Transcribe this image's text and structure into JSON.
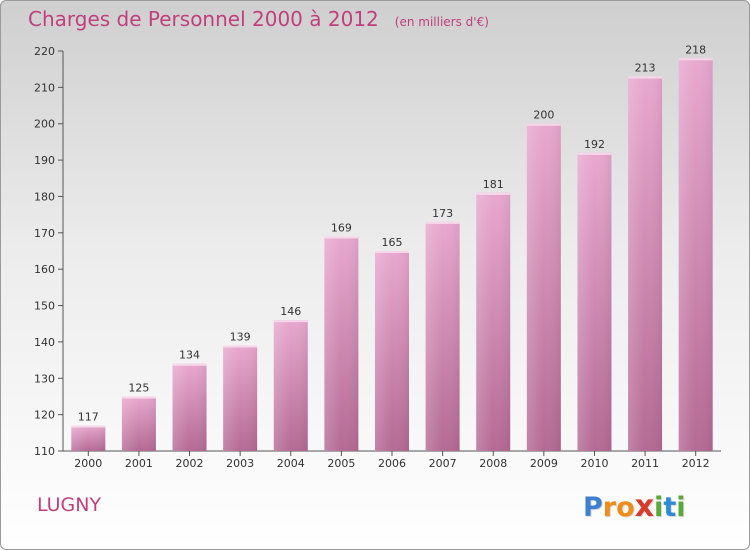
{
  "title": "Charges de Personnel 2000 à 2012",
  "subtitle": "(en milliers d'€)",
  "city": "LUGNY",
  "logo_letters": [
    "P",
    "r",
    "o",
    "x",
    "i",
    "t",
    "i"
  ],
  "colors": {
    "title": "#c0407e",
    "bar_top": "#e8a8cf",
    "bar_bottom": "#b46a94",
    "logo": [
      "#3f7fd0",
      "#f08c1a",
      "#f08c1a",
      "#d83a2c",
      "#5aa83a",
      "#2f8ad6",
      "#5aa83a"
    ]
  },
  "chart_data": {
    "type": "bar",
    "title": "Charges de Personnel 2000 à 2012",
    "ylabel": "en milliers d'€",
    "xlabel": "",
    "categories": [
      "2000",
      "2001",
      "2002",
      "2003",
      "2004",
      "2005",
      "2006",
      "2007",
      "2008",
      "2009",
      "2010",
      "2011",
      "2012"
    ],
    "values": [
      117,
      125,
      134,
      139,
      146,
      169,
      165,
      173,
      181,
      200,
      192,
      213,
      218
    ],
    "ylim": [
      110,
      220
    ],
    "yticks": [
      110,
      120,
      130,
      140,
      150,
      160,
      170,
      180,
      190,
      200,
      210,
      220
    ],
    "grid": false,
    "data_labels": true
  }
}
